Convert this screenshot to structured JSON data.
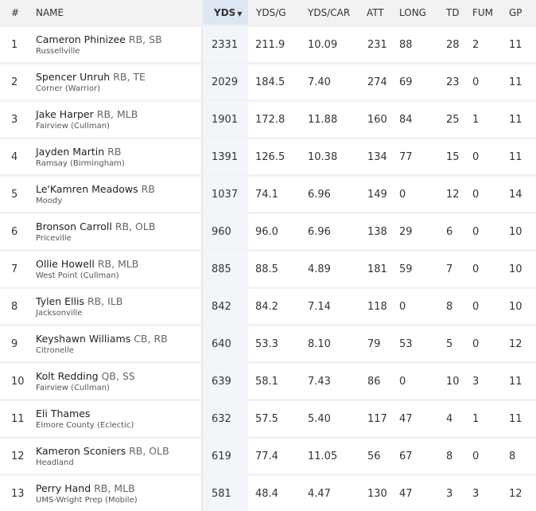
{
  "headers": {
    "rank": "#",
    "name": "NAME",
    "yds": "YDS",
    "ydsg": "YDS/G",
    "ydscar": "YDS/CAR",
    "att": "ATT",
    "long": "LONG",
    "td": "TD",
    "fum": "FUM",
    "gp": "GP",
    "sort_icon": "sort-descending-icon"
  },
  "rows": [
    {
      "rank": "1",
      "name": "Cameron Phinizee",
      "pos": "RB, SB",
      "school": "Russellville",
      "yds": "2331",
      "ydsg": "211.9",
      "ydscar": "10.09",
      "att": "231",
      "long": "88",
      "td": "28",
      "fum": "2",
      "gp": "11"
    },
    {
      "rank": "2",
      "name": "Spencer Unruh",
      "pos": "RB, TE",
      "school": "Corner (Warrior)",
      "yds": "2029",
      "ydsg": "184.5",
      "ydscar": "7.40",
      "att": "274",
      "long": "69",
      "td": "23",
      "fum": "0",
      "gp": "11"
    },
    {
      "rank": "3",
      "name": "Jake Harper",
      "pos": "RB, MLB",
      "school": "Fairview (Cullman)",
      "yds": "1901",
      "ydsg": "172.8",
      "ydscar": "11.88",
      "att": "160",
      "long": "84",
      "td": "25",
      "fum": "1",
      "gp": "11"
    },
    {
      "rank": "4",
      "name": "Jayden Martin",
      "pos": "RB",
      "school": "Ramsay (Birmingham)",
      "yds": "1391",
      "ydsg": "126.5",
      "ydscar": "10.38",
      "att": "134",
      "long": "77",
      "td": "15",
      "fum": "0",
      "gp": "11"
    },
    {
      "rank": "5",
      "name": "Le'Kamren Meadows",
      "pos": "RB",
      "school": "Moody",
      "yds": "1037",
      "ydsg": "74.1",
      "ydscar": "6.96",
      "att": "149",
      "long": "0",
      "td": "12",
      "fum": "0",
      "gp": "14"
    },
    {
      "rank": "6",
      "name": "Bronson Carroll",
      "pos": "RB, OLB",
      "school": "Priceville",
      "yds": "960",
      "ydsg": "96.0",
      "ydscar": "6.96",
      "att": "138",
      "long": "29",
      "td": "6",
      "fum": "0",
      "gp": "10"
    },
    {
      "rank": "7",
      "name": "Ollie Howell",
      "pos": "RB, MLB",
      "school": "West Point (Cullman)",
      "yds": "885",
      "ydsg": "88.5",
      "ydscar": "4.89",
      "att": "181",
      "long": "59",
      "td": "7",
      "fum": "0",
      "gp": "10"
    },
    {
      "rank": "8",
      "name": "Tylen Ellis",
      "pos": "RB, ILB",
      "school": "Jacksonville",
      "yds": "842",
      "ydsg": "84.2",
      "ydscar": "7.14",
      "att": "118",
      "long": "0",
      "td": "8",
      "fum": "0",
      "gp": "10"
    },
    {
      "rank": "9",
      "name": "Keyshawn Williams",
      "pos": "CB, RB",
      "school": "Citronelle",
      "yds": "640",
      "ydsg": "53.3",
      "ydscar": "8.10",
      "att": "79",
      "long": "53",
      "td": "5",
      "fum": "0",
      "gp": "12"
    },
    {
      "rank": "10",
      "name": "Kolt Redding",
      "pos": "QB, SS",
      "school": "Fairview (Cullman)",
      "yds": "639",
      "ydsg": "58.1",
      "ydscar": "7.43",
      "att": "86",
      "long": "0",
      "td": "10",
      "fum": "3",
      "gp": "11"
    },
    {
      "rank": "11",
      "name": "Eli Thames",
      "pos": "",
      "school": "Elmore County (Eclectic)",
      "yds": "632",
      "ydsg": "57.5",
      "ydscar": "5.40",
      "att": "117",
      "long": "47",
      "td": "4",
      "fum": "1",
      "gp": "11"
    },
    {
      "rank": "12",
      "name": "Kameron Sconiers",
      "pos": "RB, OLB",
      "school": "Headland",
      "yds": "619",
      "ydsg": "77.4",
      "ydscar": "11.05",
      "att": "56",
      "long": "67",
      "td": "8",
      "fum": "0",
      "gp": "8"
    },
    {
      "rank": "13",
      "name": "Perry Hand",
      "pos": "RB, MLB",
      "school": "UMS-Wright Prep (Mobile)",
      "yds": "581",
      "ydsg": "48.4",
      "ydscar": "4.47",
      "att": "130",
      "long": "47",
      "td": "3",
      "fum": "3",
      "gp": "12"
    }
  ]
}
